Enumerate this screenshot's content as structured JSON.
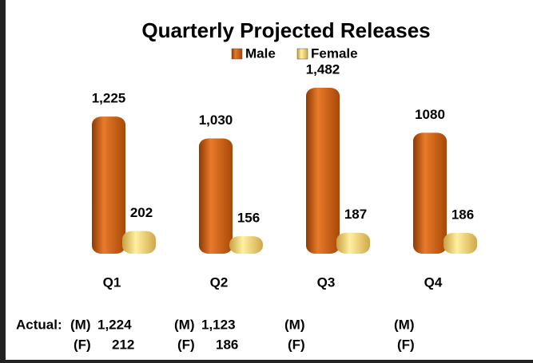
{
  "chart_data": {
    "type": "bar",
    "title": "Quarterly Projected Releases",
    "categories": [
      "Q1",
      "Q2",
      "Q3",
      "Q4"
    ],
    "series": [
      {
        "name": "Male",
        "color": "#c85a10",
        "values": [
          1225,
          1030,
          1482,
          1080
        ],
        "value_labels": [
          "1,225",
          "1,030",
          "1,482",
          "1080"
        ]
      },
      {
        "name": "Female",
        "color": "#f0d070",
        "values": [
          202,
          156,
          187,
          186
        ]
      }
    ],
    "actual": {
      "label": "Actual:",
      "male_marker": "(M)",
      "female_marker": "(F)",
      "male": [
        1224,
        1123,
        null,
        null
      ],
      "male_labels": [
        "1,224",
        "1,123",
        null,
        null
      ],
      "female": [
        212,
        186,
        null,
        null
      ]
    }
  }
}
